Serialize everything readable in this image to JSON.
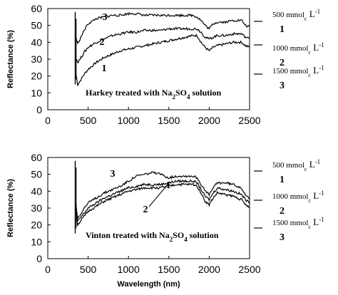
{
  "chart_data": [
    {
      "type": "line",
      "title": "Harkey treated with Na2SO4 solution",
      "xlabel": "",
      "ylabel": "Reflectance (%)",
      "xlim": [
        0,
        2500
      ],
      "ylim": [
        0,
        60
      ],
      "xticks": [
        "0",
        "500",
        "1000",
        "1500",
        "2000",
        "2500"
      ],
      "yticks": [
        "0",
        "10",
        "20",
        "30",
        "40",
        "50",
        "60"
      ],
      "curve_labels": [
        "1",
        "2",
        "3"
      ],
      "legend": [
        {
          "label": "500 mmol",
          "sub": "c",
          "unit": " L",
          "sup": "-1",
          "curve": "1"
        },
        {
          "label": "1000 mmol",
          "sub": "c",
          "unit": " L",
          "sup": "-1",
          "curve": "2"
        },
        {
          "label": "1500 mmol",
          "sub": "c",
          "unit": " L",
          "sup": "-1",
          "curve": "3"
        }
      ],
      "series": [
        {
          "name": "1",
          "x": [
            350,
            370,
            400,
            450,
            500,
            600,
            700,
            800,
            900,
            1000,
            1100,
            1200,
            1300,
            1400,
            1500,
            1600,
            1700,
            1800,
            1850,
            1900,
            1950,
            2000,
            2050,
            2100,
            2200,
            2300,
            2400,
            2450,
            2500
          ],
          "y": [
            21,
            15,
            17,
            21,
            24,
            28,
            31,
            33,
            35,
            36,
            37,
            38,
            39,
            40,
            41,
            42,
            43,
            44,
            44,
            40,
            37,
            35,
            37,
            38,
            39,
            40,
            40,
            38,
            37
          ]
        },
        {
          "name": "2",
          "x": [
            350,
            370,
            400,
            450,
            500,
            600,
            700,
            800,
            900,
            1000,
            1100,
            1200,
            1300,
            1400,
            1500,
            1600,
            1700,
            1800,
            1850,
            1900,
            1950,
            2000,
            2050,
            2100,
            2200,
            2300,
            2400,
            2450,
            2500
          ],
          "y": [
            31,
            28,
            30,
            34,
            37,
            40,
            42,
            44,
            45,
            46,
            46,
            47,
            47,
            47,
            48,
            48,
            48,
            48,
            48,
            46,
            43,
            42,
            43,
            44,
            44,
            45,
            45,
            43,
            42
          ]
        },
        {
          "name": "3",
          "x": [
            350,
            370,
            400,
            450,
            500,
            600,
            700,
            800,
            900,
            1000,
            1100,
            1200,
            1300,
            1400,
            1500,
            1600,
            1700,
            1800,
            1850,
            1900,
            1950,
            2000,
            2050,
            2100,
            2200,
            2300,
            2400,
            2450,
            2500
          ],
          "y": [
            43,
            39,
            42,
            47,
            51,
            54,
            55,
            56,
            56,
            57,
            57,
            56,
            56,
            56,
            56,
            56,
            56,
            56,
            55,
            53,
            50,
            48,
            51,
            52,
            52,
            53,
            53,
            50,
            49
          ]
        }
      ]
    },
    {
      "type": "line",
      "title": "Vinton treated with Na2SO4 solution",
      "xlabel": "Wavelength (nm)",
      "ylabel": "Reflectance (%)",
      "xlim": [
        0,
        2500
      ],
      "ylim": [
        0,
        60
      ],
      "xticks": [
        "0",
        "500",
        "1000",
        "1500",
        "2000",
        "2500"
      ],
      "yticks": [
        "0",
        "10",
        "20",
        "30",
        "40",
        "50",
        "60"
      ],
      "curve_labels": [
        "1",
        "2",
        "3"
      ],
      "legend": [
        {
          "label": "500 mmol",
          "sub": "c",
          "unit": " L",
          "sup": "-1",
          "curve": "1"
        },
        {
          "label": "1000 mmol",
          "sub": "c",
          "unit": " L",
          "sup": "-1",
          "curve": "2"
        },
        {
          "label": "1500 mmol",
          "sub": "c",
          "unit": " L",
          "sup": "-1",
          "curve": "3"
        }
      ],
      "series": [
        {
          "name": "1",
          "x": [
            350,
            370,
            400,
            450,
            500,
            600,
            700,
            800,
            900,
            1000,
            1100,
            1200,
            1300,
            1400,
            1500,
            1600,
            1700,
            1800,
            1850,
            1900,
            1950,
            2000,
            2050,
            2100,
            2200,
            2300,
            2400,
            2450,
            2500
          ],
          "y": [
            30,
            22,
            24,
            27,
            30,
            33,
            36,
            38,
            40,
            42,
            43,
            44,
            44,
            44,
            45,
            46,
            46,
            46,
            45,
            41,
            37,
            35,
            39,
            42,
            41,
            40,
            38,
            35,
            33
          ]
        },
        {
          "name": "2",
          "x": [
            350,
            370,
            400,
            450,
            500,
            600,
            700,
            800,
            900,
            1000,
            1100,
            1200,
            1300,
            1400,
            1500,
            1600,
            1700,
            1800,
            1850,
            1900,
            1950,
            2000,
            2050,
            2100,
            2200,
            2300,
            2400,
            2450,
            2500
          ],
          "y": [
            28,
            20,
            22,
            25,
            28,
            31,
            34,
            36,
            38,
            40,
            41,
            42,
            42,
            42,
            43,
            44,
            44,
            44,
            43,
            39,
            34,
            32,
            36,
            39,
            38,
            37,
            35,
            32,
            30
          ]
        },
        {
          "name": "3",
          "x": [
            350,
            370,
            400,
            450,
            500,
            600,
            700,
            800,
            900,
            1000,
            1100,
            1200,
            1300,
            1400,
            1500,
            1600,
            1700,
            1800,
            1850,
            1900,
            1950,
            2000,
            2050,
            2100,
            2200,
            2300,
            2400,
            2450,
            2500
          ],
          "y": [
            32,
            24,
            26,
            30,
            33,
            36,
            39,
            41,
            43,
            46,
            49,
            50,
            51,
            50,
            48,
            49,
            49,
            49,
            48,
            44,
            40,
            38,
            42,
            45,
            45,
            44,
            42,
            38,
            35
          ]
        }
      ]
    }
  ]
}
